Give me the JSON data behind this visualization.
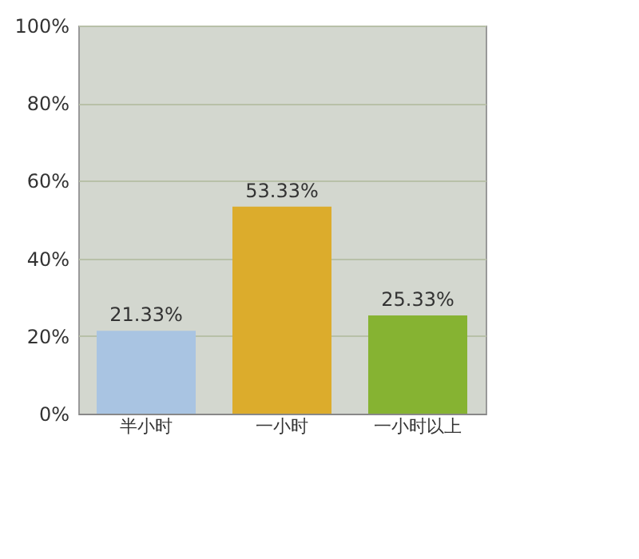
{
  "chart_data": {
    "type": "bar",
    "categories": [
      "半小时",
      "一小时",
      "一小时以上"
    ],
    "values": [
      21.33,
      53.33,
      25.33
    ],
    "colors": [
      "#a9c4e2",
      "#dcac2c",
      "#86b332"
    ],
    "value_labels": [
      "21.33%",
      "53.33%",
      "25.33%"
    ],
    "ylim": [
      0,
      100
    ],
    "yticks": [
      {
        "value": 0,
        "label": "0%"
      },
      {
        "value": 20,
        "label": "20%"
      },
      {
        "value": 40,
        "label": "40%"
      },
      {
        "value": 60,
        "label": "60%"
      },
      {
        "value": 80,
        "label": "80%"
      },
      {
        "value": 100,
        "label": "100%"
      }
    ],
    "grid": "y"
  }
}
